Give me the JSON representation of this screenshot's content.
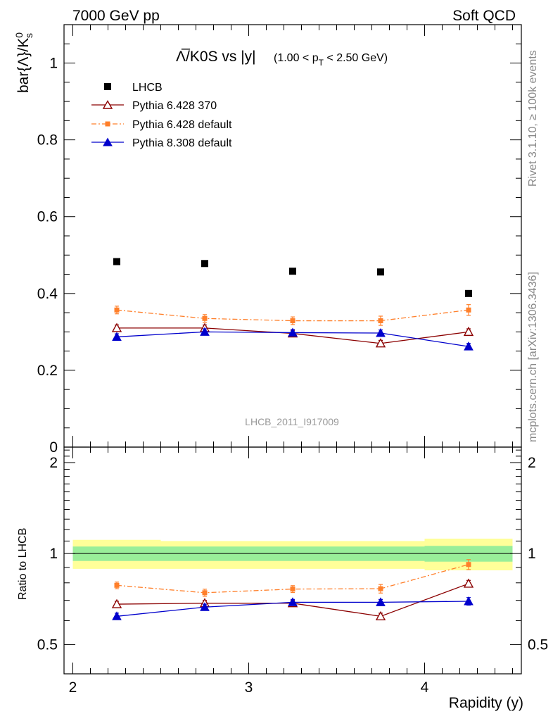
{
  "header": {
    "left": "7000 GeV pp",
    "right": "Soft QCD"
  },
  "side_labels": {
    "rivet": "Rivet 3.1.10, ≥ 100k events",
    "mcplots": "mcplots.cern.ch [arXiv:1306.3436]"
  },
  "watermark": "LHCB_2011_I917009",
  "title": {
    "main": "Λ̅/K0S vs |y|",
    "range_pre": "(1.00 < p",
    "range_sub": "T",
    "range_post": " < 2.50 GeV)"
  },
  "colors": {
    "data": "#000000",
    "p6_370": "#8b0000",
    "p6_default": "#ff7f2a",
    "p8_default": "#0000cc",
    "band_inner": "#99ee99",
    "band_outer": "#ffff99"
  },
  "chart_data": [
    {
      "type": "scatter",
      "panel": "main",
      "ylabel_main": "bar{Λ}/K",
      "ylabel_sup": "0",
      "ylabel_sub": "s",
      "ylim": [
        0,
        1.1
      ],
      "yticks": [
        {
          "value": 0,
          "label": "0"
        },
        {
          "value": 0.2,
          "label": "0.2"
        },
        {
          "value": 0.4,
          "label": "0.4"
        },
        {
          "value": 0.6,
          "label": "0.6"
        },
        {
          "value": 0.8,
          "label": "0.8"
        },
        {
          "value": 1.0,
          "label": "1"
        }
      ],
      "x": [
        2.25,
        2.75,
        3.25,
        3.75,
        4.25
      ],
      "legend_position": "top-left",
      "series": [
        {
          "name": "LHCB",
          "key": "data",
          "marker": "square",
          "values": [
            0.483,
            0.478,
            0.458,
            0.456,
            0.4
          ],
          "errors": [
            0.004,
            0.004,
            0.004,
            0.004,
            0.004
          ]
        },
        {
          "name": "Pythia 6.428 370",
          "key": "p6_370",
          "marker": "open-triangle",
          "line": "solid",
          "values": [
            0.31,
            0.31,
            0.296,
            0.27,
            0.3
          ],
          "errors": [
            0.008,
            0.008,
            0.008,
            0.008,
            0.008
          ]
        },
        {
          "name": "Pythia 6.428 default",
          "key": "p6_default",
          "marker": "small-square",
          "line": "dashdot",
          "values": [
            0.357,
            0.335,
            0.329,
            0.329,
            0.357
          ],
          "errors": [
            0.01,
            0.01,
            0.01,
            0.012,
            0.014
          ]
        },
        {
          "name": "Pythia 8.308 default",
          "key": "p8_default",
          "marker": "filled-triangle",
          "line": "solid",
          "values": [
            0.287,
            0.3,
            0.298,
            0.297,
            0.262
          ],
          "errors": [
            0.008,
            0.008,
            0.008,
            0.008,
            0.008
          ]
        }
      ]
    },
    {
      "type": "scatter",
      "panel": "ratio",
      "ylabel": "Ratio to LHCB",
      "xlabel": "Rapidity (y)",
      "xlim": [
        1.95,
        4.55
      ],
      "ylim": [
        0.4,
        2.25
      ],
      "xticks": [
        {
          "value": 2,
          "label": "2"
        },
        {
          "value": 3,
          "label": "3"
        },
        {
          "value": 4,
          "label": "4"
        }
      ],
      "yticks": [
        {
          "value": 0.5,
          "label": "0.5"
        },
        {
          "value": 1,
          "label": "1"
        },
        {
          "value": 2,
          "label": "2"
        }
      ],
      "x": [
        2.25,
        2.75,
        3.25,
        3.75,
        4.25
      ],
      "bins": [
        {
          "lo": 2.0,
          "hi": 2.5,
          "inner": [
            0.945,
            1.055
          ],
          "outer": [
            0.89,
            1.11
          ]
        },
        {
          "lo": 2.5,
          "hi": 3.0,
          "inner": [
            0.945,
            1.055
          ],
          "outer": [
            0.89,
            1.1
          ]
        },
        {
          "lo": 3.0,
          "hi": 3.5,
          "inner": [
            0.945,
            1.055
          ],
          "outer": [
            0.89,
            1.1
          ]
        },
        {
          "lo": 3.5,
          "hi": 4.0,
          "inner": [
            0.945,
            1.055
          ],
          "outer": [
            0.89,
            1.1
          ]
        },
        {
          "lo": 4.0,
          "hi": 4.5,
          "inner": [
            0.94,
            1.06
          ],
          "outer": [
            0.88,
            1.12
          ]
        }
      ],
      "series": [
        {
          "name": "Pythia 6.428 370",
          "key": "p6_370",
          "marker": "open-triangle",
          "line": "solid",
          "values": [
            0.68,
            0.685,
            0.685,
            0.62,
            0.795
          ],
          "errors": [
            0.015,
            0.015,
            0.015,
            0.015,
            0.02
          ]
        },
        {
          "name": "Pythia 6.428 default",
          "key": "p6_default",
          "marker": "small-square",
          "line": "dashdot",
          "values": [
            0.785,
            0.742,
            0.763,
            0.765,
            0.92
          ],
          "errors": [
            0.02,
            0.02,
            0.02,
            0.025,
            0.035
          ]
        },
        {
          "name": "Pythia 8.308 default",
          "key": "p8_default",
          "marker": "filled-triangle",
          "line": "solid",
          "values": [
            0.62,
            0.665,
            0.69,
            0.69,
            0.695
          ],
          "errors": [
            0.015,
            0.015,
            0.015,
            0.015,
            0.02
          ]
        }
      ]
    }
  ]
}
